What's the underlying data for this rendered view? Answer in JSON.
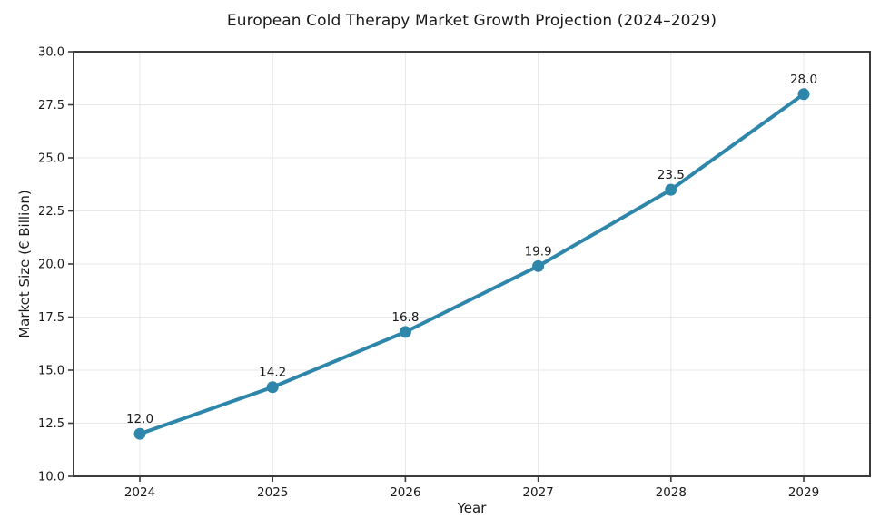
{
  "title": "European Cold Therapy Market Growth Projection (2024–2029)",
  "chart_data": {
    "type": "line",
    "title": "European Cold Therapy Market Growth Projection (2024–2029)",
    "xlabel": "Year",
    "ylabel": "Market Size (€ Billion)",
    "x": [
      "2024",
      "2025",
      "2026",
      "2027",
      "2028",
      "2029"
    ],
    "values": [
      12.0,
      14.2,
      16.8,
      19.9,
      23.5,
      28.0
    ],
    "point_labels": [
      "12.0",
      "14.2",
      "16.8",
      "19.9",
      "23.5",
      "28.0"
    ],
    "ylim": [
      10.0,
      30.0
    ],
    "yticks": [
      "10.0",
      "12.5",
      "15.0",
      "17.5",
      "20.0",
      "22.5",
      "25.0",
      "27.5",
      "30.0"
    ],
    "grid": true,
    "legend": "none",
    "line_color": "#2E86AB",
    "marker_color": "#2E86AB",
    "grid_color": "#e7e7e7",
    "spine_color": "#3b3b3b",
    "text_color": "#1a1a1a"
  }
}
